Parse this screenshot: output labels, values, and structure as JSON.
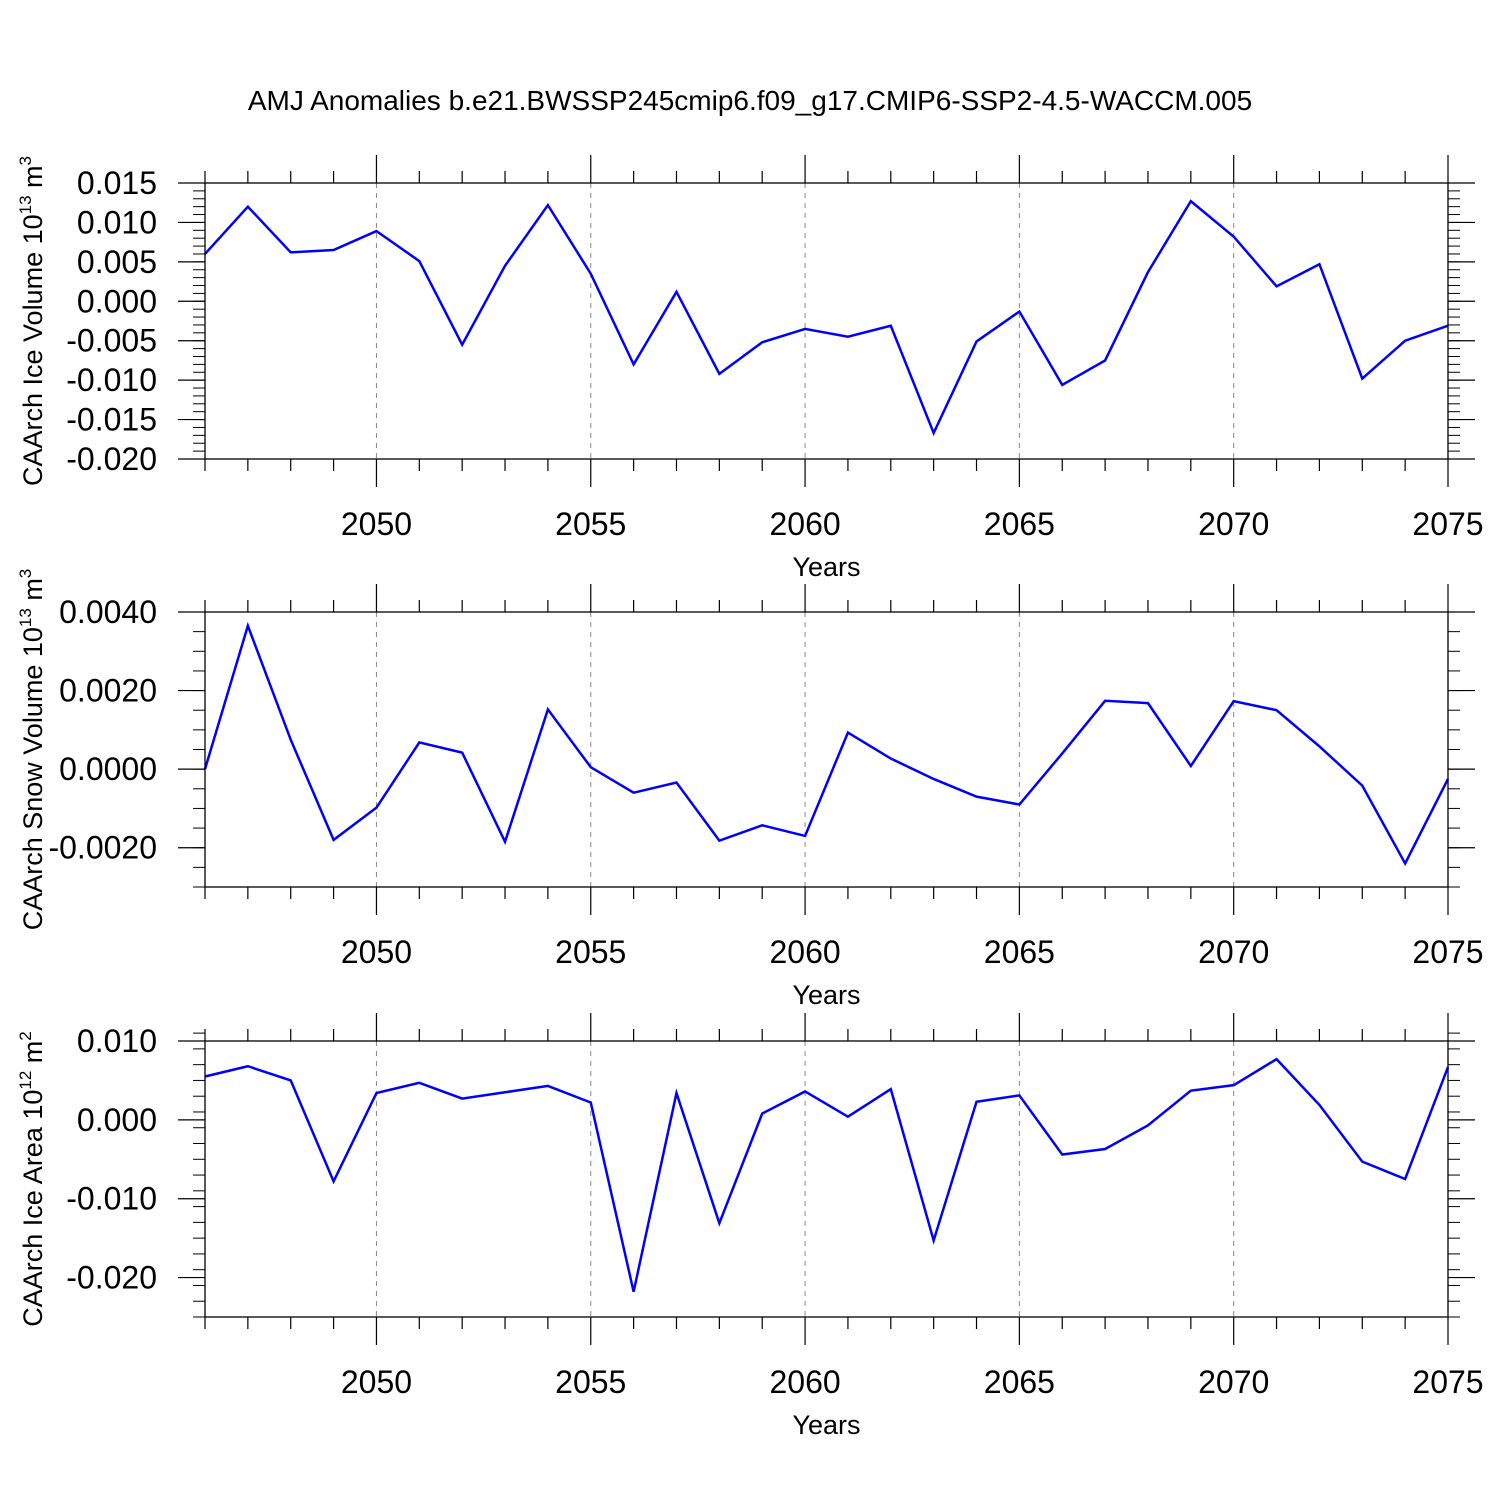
{
  "title": "AMJ Anomalies b.e21.BWSSP245cmip6.f09_g17.CMIP6-SSP2-4.5-WACCM.005",
  "colors": {
    "series": "#0000ff",
    "axis": "#000000",
    "grid": "#888888",
    "background": "#ffffff"
  },
  "chart_data": [
    {
      "type": "line",
      "ylabel": {
        "text": "CAArch Ice Volume 10",
        "exp": "13",
        "unit": " m",
        "unit_exp": "3"
      },
      "xlabel": "Years",
      "xlim": [
        2046,
        2075
      ],
      "ylim": [
        -0.02,
        0.015
      ],
      "grid": "vertical dashed at labeled x ticks",
      "x_ticks": [
        2050,
        2055,
        2060,
        2065,
        2070,
        2075
      ],
      "x_tick_labels": [
        "2050",
        "2055",
        "2060",
        "2065",
        "2070",
        "2075"
      ],
      "y_ticks": [
        0.015,
        0.01,
        0.005,
        0.0,
        -0.005,
        -0.01,
        -0.015,
        -0.02
      ],
      "y_tick_labels": [
        "0.015",
        "0.010",
        "0.005",
        "0.000",
        "-0.005",
        "-0.010",
        "-0.015",
        "-0.020"
      ],
      "y_minor_step": 0.001,
      "x": [
        2046,
        2047,
        2048,
        2049,
        2050,
        2051,
        2052,
        2053,
        2054,
        2055,
        2056,
        2057,
        2058,
        2059,
        2060,
        2061,
        2062,
        2063,
        2064,
        2065,
        2066,
        2067,
        2068,
        2069,
        2070,
        2071,
        2072,
        2073,
        2074,
        2075
      ],
      "values": [
        0.006,
        0.012,
        0.0062,
        0.0065,
        0.0089,
        0.0051,
        -0.0055,
        0.0045,
        0.0122,
        0.0035,
        -0.008,
        0.0012,
        -0.0092,
        -0.0052,
        -0.0035,
        -0.0045,
        -0.0031,
        -0.0167,
        -0.0051,
        -0.0013,
        -0.0106,
        -0.0075,
        0.0037,
        0.0127,
        0.0082,
        0.0019,
        0.0047,
        -0.0098,
        -0.005,
        -0.0031
      ]
    },
    {
      "type": "line",
      "ylabel": {
        "text": "CAArch Snow Volume 10",
        "exp": "13",
        "unit": " m",
        "unit_exp": "3"
      },
      "xlabel": "Years",
      "xlim": [
        2046,
        2075
      ],
      "ylim": [
        -0.003,
        0.004
      ],
      "grid": "vertical dashed at labeled x ticks",
      "x_ticks": [
        2050,
        2055,
        2060,
        2065,
        2070,
        2075
      ],
      "x_tick_labels": [
        "2050",
        "2055",
        "2060",
        "2065",
        "2070",
        "2075"
      ],
      "y_ticks": [
        0.004,
        0.002,
        0.0,
        -0.002
      ],
      "y_tick_labels": [
        "0.0040",
        "0.0020",
        "0.0000",
        "-0.0020"
      ],
      "y_minor_step": 0.0005,
      "x": [
        2046,
        2047,
        2048,
        2049,
        2050,
        2051,
        2052,
        2053,
        2054,
        2055,
        2056,
        2057,
        2058,
        2059,
        2060,
        2061,
        2062,
        2063,
        2064,
        2065,
        2066,
        2067,
        2068,
        2069,
        2070,
        2071,
        2072,
        2073,
        2074,
        2075
      ],
      "values": [
        0.0,
        0.00365,
        0.00075,
        -0.0018,
        -0.00098,
        0.00068,
        0.00042,
        -0.00185,
        0.00152,
        5e-05,
        -0.0006,
        -0.00034,
        -0.00182,
        -0.00143,
        -0.0017,
        0.00093,
        0.00027,
        -0.00025,
        -0.0007,
        -0.0009,
        0.0004,
        0.00174,
        0.00168,
        8e-05,
        0.00173,
        0.0015,
        0.00058,
        -0.00042,
        -0.0024,
        -0.00025
      ]
    },
    {
      "type": "line",
      "ylabel": {
        "text": "CAArch Ice Area 10",
        "exp": "12",
        "unit": " m",
        "unit_exp": "2"
      },
      "xlabel": "Years",
      "xlim": [
        2046,
        2075
      ],
      "ylim": [
        -0.025,
        0.01
      ],
      "grid": "vertical dashed at labeled x ticks",
      "x_ticks": [
        2050,
        2055,
        2060,
        2065,
        2070,
        2075
      ],
      "x_tick_labels": [
        "2050",
        "2055",
        "2060",
        "2065",
        "2070",
        "2075"
      ],
      "y_ticks": [
        0.01,
        0.0,
        -0.01,
        -0.02
      ],
      "y_tick_labels": [
        "0.010",
        "0.000",
        "-0.010",
        "-0.020"
      ],
      "y_minor_step": 0.002,
      "x": [
        2046,
        2047,
        2048,
        2049,
        2050,
        2051,
        2052,
        2053,
        2054,
        2055,
        2056,
        2057,
        2058,
        2059,
        2060,
        2061,
        2062,
        2063,
        2064,
        2065,
        2066,
        2067,
        2068,
        2069,
        2070,
        2071,
        2072,
        2073,
        2074,
        2075
      ],
      "values": [
        0.0055,
        0.0068,
        0.005,
        -0.0078,
        0.0034,
        0.0047,
        0.0027,
        0.0035,
        0.0043,
        0.0022,
        -0.0218,
        0.0034,
        -0.0131,
        0.0008,
        0.0036,
        0.0004,
        0.0039,
        -0.0153,
        0.0023,
        0.0031,
        -0.0044,
        -0.0037,
        -0.0007,
        0.0037,
        0.0044,
        0.0077,
        0.0019,
        -0.0053,
        -0.0075,
        0.0067
      ]
    }
  ]
}
